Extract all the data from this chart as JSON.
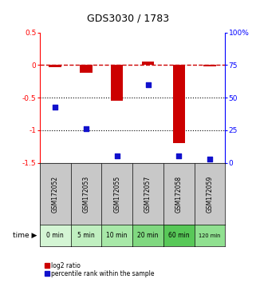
{
  "title": "GDS3030 / 1783",
  "samples": [
    "GSM172052",
    "GSM172053",
    "GSM172055",
    "GSM172057",
    "GSM172058",
    "GSM172059"
  ],
  "time_labels": [
    "0 min",
    "5 min",
    "10 min",
    "20 min",
    "60 min",
    "120 min"
  ],
  "log2_ratio": [
    -0.03,
    -0.12,
    -0.55,
    0.05,
    -1.2,
    -0.02
  ],
  "percentile_rank": [
    43,
    26,
    5,
    60,
    5,
    3
  ],
  "ylim_left": [
    -1.5,
    0.5
  ],
  "ylim_right": [
    0,
    100
  ],
  "left_yticks": [
    0.5,
    0,
    -0.5,
    -1.0,
    -1.5
  ],
  "left_yticklabels": [
    "0.5",
    "0",
    "-0.5",
    "-1",
    "-1.5"
  ],
  "right_yticks": [
    100,
    75,
    50,
    25,
    0
  ],
  "right_yticklabels": [
    "100%",
    "75",
    "50",
    "25",
    "0"
  ],
  "bar_color": "#cc0000",
  "dot_color": "#1111cc",
  "hline_color": "#cc0000",
  "dotted_lines": [
    -0.5,
    -1.0
  ],
  "grey_bg": "#c8c8c8",
  "green_colors": [
    "#d4f5d4",
    "#c0efc0",
    "#a8e8a8",
    "#80d880",
    "#58c858",
    "#90e090"
  ],
  "time_arrow_label": "time"
}
